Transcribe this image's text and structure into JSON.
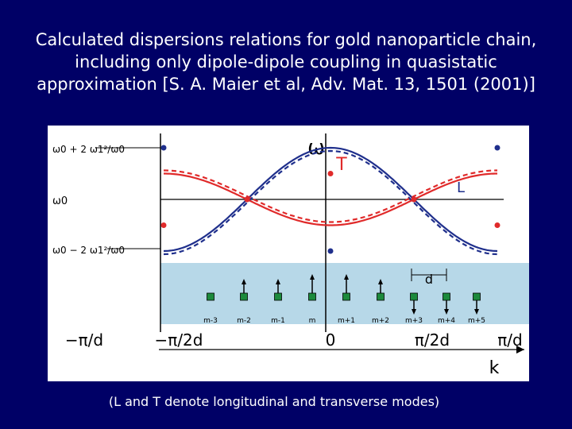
{
  "slide": {
    "title": "Calculated dispersions relations for gold nanoparticle chain, including only dipole-dipole coupling in quasistatic approximation [S. A. Maier et al, Adv. Mat. 13, 1501 (2001)]",
    "caption": "(L and T denote longitudinal and transverse modes)"
  },
  "colors": {
    "background": "#000066",
    "L": "#1f2f8c",
    "T": "#e02a2a",
    "band": "#b7d8e8",
    "particle": "#1c8a3c"
  },
  "chart_data": {
    "type": "line",
    "x_ticks": [
      "−π/d",
      "−π/2d",
      "0",
      "π/2d",
      "π/d"
    ],
    "xlabel": "k",
    "y_ticks": [
      "ω0 + 2 ω1²/ω0",
      "ω0",
      "ω0 − 2 ω1²/ω0"
    ],
    "ylabel": "ω",
    "series": [
      {
        "name": "L",
        "values": [
          [
            -1,
            1.0
          ],
          [
            -0.5,
            0.0
          ],
          [
            0,
            -1.0
          ],
          [
            0.5,
            0.0
          ],
          [
            1,
            1.0
          ]
        ]
      },
      {
        "name": "T",
        "values": [
          [
            -1,
            -0.5
          ],
          [
            -0.5,
            0.0
          ],
          [
            0,
            0.5
          ],
          [
            0.5,
            0.0
          ],
          [
            1,
            -0.5
          ]
        ]
      }
    ],
    "particle_labels": [
      "m-3",
      "m-2",
      "m-1",
      "m",
      "m+1",
      "m+2",
      "m+3",
      "m+4",
      "m+5"
    ],
    "spacing_label": "d"
  }
}
